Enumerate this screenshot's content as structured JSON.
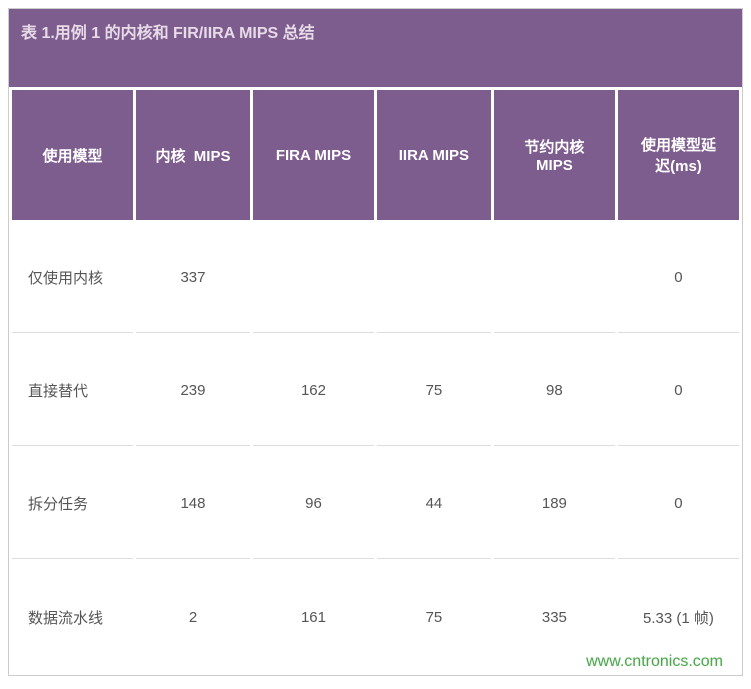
{
  "title": "表 1.用例 1 的内核和 FIR/IIRA MIPS 总结",
  "columns": [
    "使用模型",
    "内核  MIPS",
    "FIRA MIPS",
    "IIRA MIPS",
    "节约内核MIPS",
    "使用模型延迟(ms)"
  ],
  "col_html": [
    "使用模型",
    "内核&nbsp;&nbsp;MIPS",
    "FIRA MIPS",
    "IIRA MIPS",
    "节约内核<br>MIPS",
    "使用模型延<br>迟(ms)"
  ],
  "rows": [
    [
      "仅使用内核",
      "337",
      "",
      "",
      "",
      "0"
    ],
    [
      "直接替代",
      "239",
      "162",
      "75",
      "98",
      "0"
    ],
    [
      "拆分任务",
      "148",
      "96",
      "44",
      "189",
      "0"
    ],
    [
      "数据流水线",
      "2",
      "161",
      "75",
      "335",
      "5.33 (1 帧)"
    ]
  ],
  "style": {
    "header_bg": "#7d5c8e",
    "header_fg_soft": "#e8dbe8",
    "header_fg": "#ffffff",
    "cell_fg": "#555555",
    "border": "#cccccc",
    "row_divider": "#dddddd",
    "watermark_color": "#4aa84a",
    "title_fontsize": 16,
    "th_fontsize": 15,
    "td_fontsize": 15,
    "col_widths_pct": [
      17,
      16,
      17,
      16,
      17,
      17
    ]
  },
  "watermark": "www.cntronics.com"
}
